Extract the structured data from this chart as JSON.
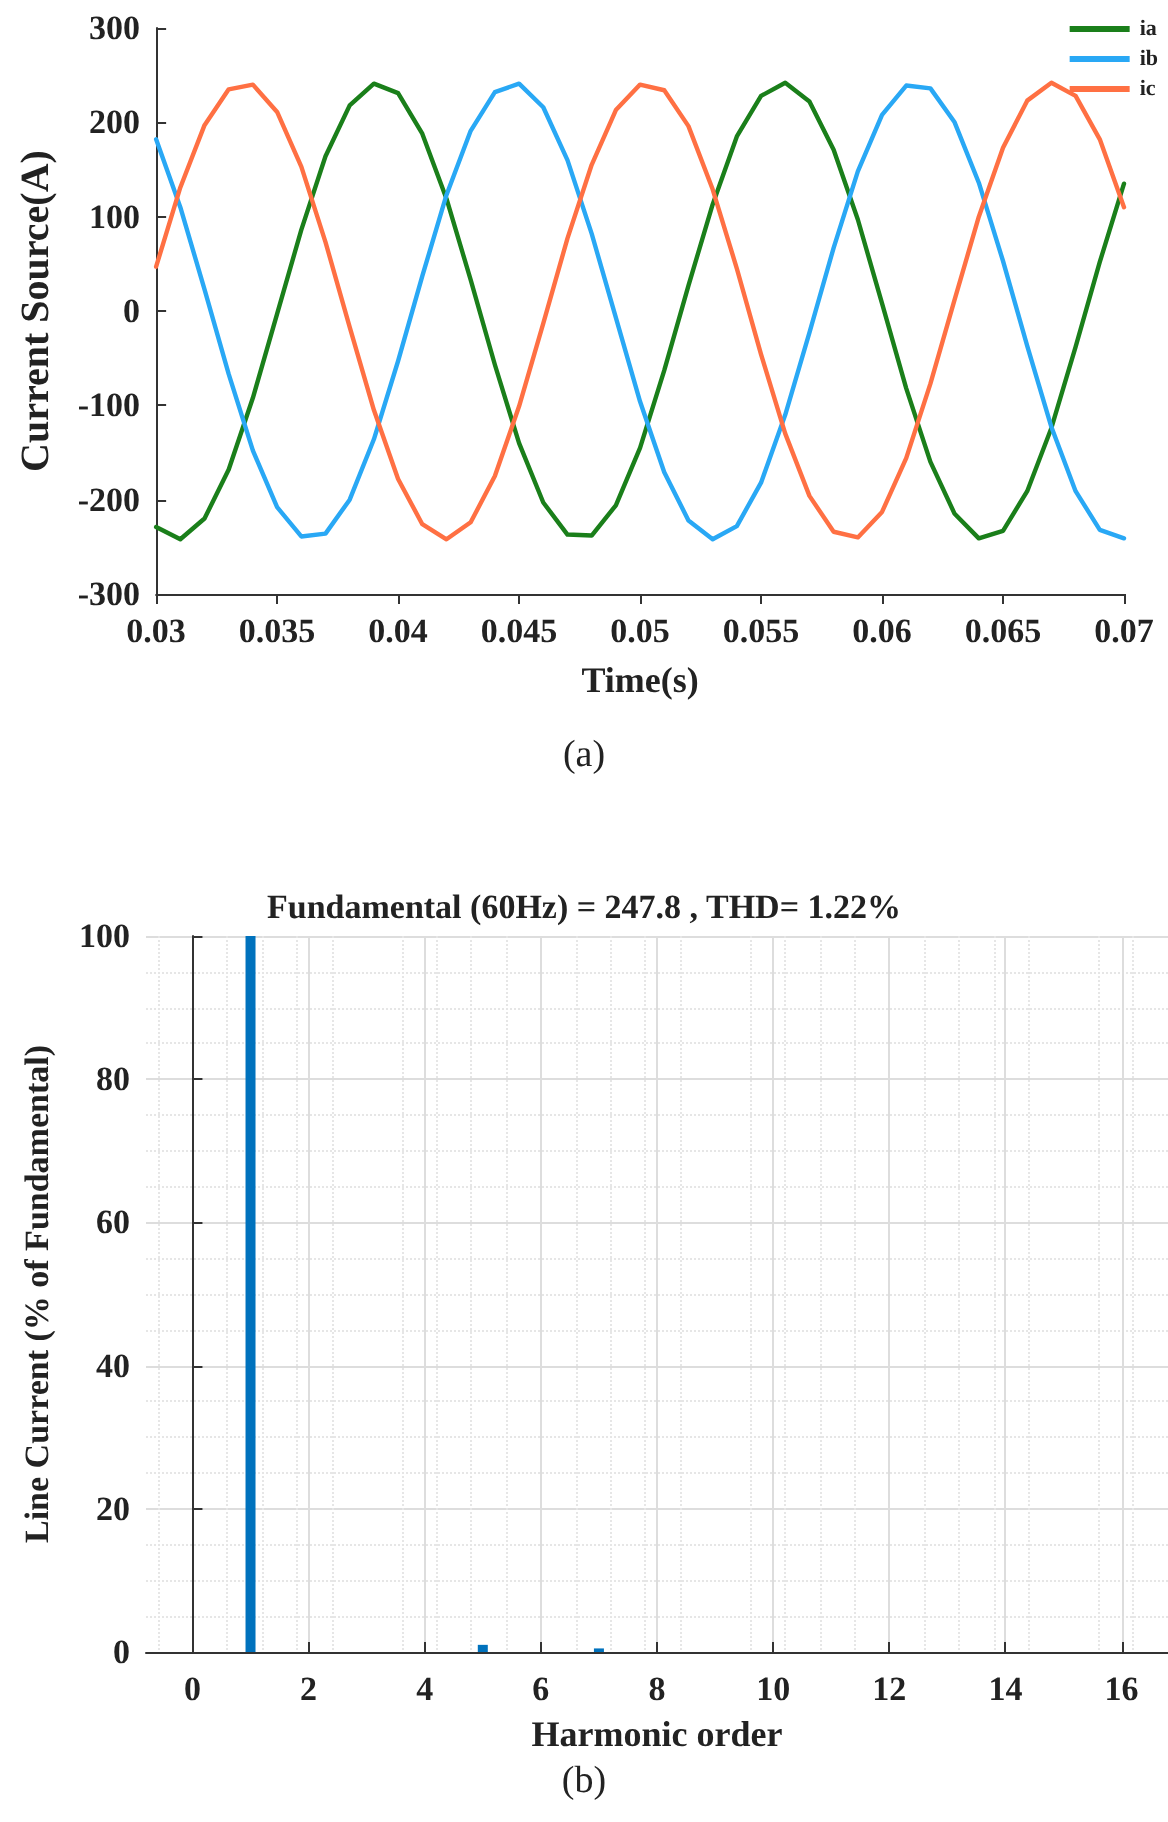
{
  "chart_data": [
    {
      "type": "line",
      "xlabel": "Time(s)",
      "ylabel": "Current Source(A)",
      "annotations": [
        "(a)"
      ],
      "legend": "top right",
      "grid": false,
      "marker": "none",
      "line_style": "solid",
      "x": [
        0.03,
        0.031,
        0.032,
        0.033,
        0.034,
        0.035,
        0.036,
        0.037,
        0.038,
        0.039,
        0.04,
        0.041,
        0.042,
        0.043,
        0.044,
        0.045,
        0.046,
        0.047,
        0.048,
        0.049,
        0.05,
        0.051,
        0.052,
        0.053,
        0.054,
        0.055,
        0.056,
        0.057,
        0.058,
        0.059,
        0.06,
        0.061,
        0.062,
        0.063,
        0.064,
        0.065,
        0.066,
        0.067,
        0.068,
        0.069,
        0.07
      ],
      "xlim": [
        0.03,
        0.07
      ],
      "xticks": [
        0.03,
        0.035,
        0.04,
        0.045,
        0.05,
        0.055,
        0.06,
        0.065,
        0.07
      ],
      "ylim": [
        -300,
        300
      ],
      "yticks": [
        -300,
        -200,
        -100,
        0,
        100,
        200,
        300
      ],
      "series": [
        {
          "name": "ia",
          "color": "#1a7f1a",
          "values": [
            -229,
            -242,
            -220,
            -168,
            -92,
            -3,
            86,
            164,
            218,
            241,
            231,
            188,
            119,
            33,
            -57,
            -140,
            -203,
            -237,
            -238,
            -206,
            -145,
            -63,
            27,
            113,
            185,
            228,
            242,
            222,
            171,
            97,
            8,
            -82,
            -160,
            -215,
            -241,
            -233,
            -191,
            -124,
            -38,
            52,
            135
          ]
        },
        {
          "name": "ib",
          "color": "#29a8f5",
          "values": [
            182,
            110,
            23,
            -67,
            -148,
            -208,
            -239,
            -236,
            -200,
            -136,
            -53,
            37,
            123,
            191,
            232,
            241,
            216,
            160,
            82,
            -7,
            -96,
            -171,
            -222,
            -242,
            -228,
            -182,
            -110,
            -23,
            67,
            148,
            208,
            239,
            236,
            200,
            136,
            53,
            -37,
            -123,
            -191,
            -232,
            -241
          ]
        },
        {
          "name": "ic",
          "color": "#ff7043",
          "values": [
            47,
            131,
            197,
            235,
            240,
            211,
            153,
            73,
            -17,
            -105,
            -178,
            -226,
            -242,
            -224,
            -175,
            -101,
            -13,
            77,
            155,
            213,
            240,
            234,
            196,
            129,
            45,
            -46,
            -130,
            -196,
            -234,
            -240,
            -213,
            -156,
            -77,
            12,
            100,
            173,
            223,
            242,
            228,
            182,
            110
          ]
        }
      ]
    },
    {
      "type": "bar",
      "title": "Fundamental (60Hz) = 247.8 , THD= 1.22%",
      "xlabel": "Harmonic order",
      "ylabel": "Line Current (% of Fundamental)",
      "annotations": [
        "(b)"
      ],
      "grid": true,
      "x": [
        0,
        1,
        2,
        3,
        4,
        5,
        6,
        7,
        8,
        9,
        10,
        11,
        12,
        13,
        14,
        15,
        16
      ],
      "values": [
        0,
        100,
        0,
        0,
        0,
        1,
        0,
        0.5,
        0,
        0,
        0,
        0,
        0,
        0,
        0,
        0,
        0
      ],
      "color": "#0072bd",
      "xlim": [
        -0.8,
        16.8
      ],
      "xticks": [
        0,
        2,
        4,
        6,
        8,
        10,
        12,
        14,
        16
      ],
      "ylim": [
        0,
        100
      ],
      "yticks": [
        0,
        20,
        40,
        60,
        80,
        100
      ]
    }
  ]
}
